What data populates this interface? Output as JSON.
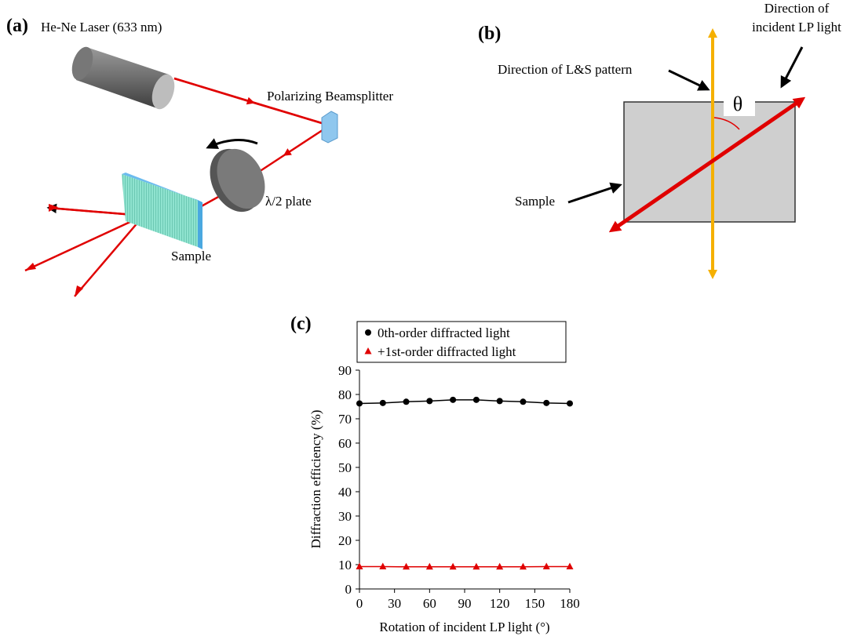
{
  "panel_a": {
    "label": "(a)",
    "laser": "He-Ne Laser (633 nm)",
    "splitter": "Polarizing Beamsplitter",
    "plate": "λ/2 plate",
    "sample": "Sample"
  },
  "panel_b": {
    "label": "(b)",
    "lp_direction": [
      "Direction of",
      "incident LP light"
    ],
    "pattern": "Direction of L&S pattern",
    "angle": "θ",
    "sample": "Sample"
  },
  "chart_data": {
    "type": "line",
    "label": "(c)",
    "x_label": "Rotation of incident LP light (°)",
    "y_label": "Diffraction efficiency (%)",
    "x": [
      0,
      20,
      40,
      60,
      80,
      100,
      120,
      140,
      160,
      180
    ],
    "series": [
      {
        "name": "0th-order diffracted light",
        "color": "#000000",
        "marker": "circle",
        "values": [
          76.3,
          76.5,
          77.0,
          77.3,
          77.8,
          77.8,
          77.3,
          77.0,
          76.5,
          76.3
        ]
      },
      {
        "name": "+1st-order diffracted light",
        "color": "#e00000",
        "marker": "triangle",
        "values": [
          9.2,
          9.2,
          9.1,
          9.1,
          9.1,
          9.1,
          9.1,
          9.1,
          9.2,
          9.2
        ]
      }
    ],
    "xlim": [
      0,
      180
    ],
    "xticks": [
      0,
      30,
      60,
      90,
      120,
      150,
      180
    ],
    "ylim": [
      0,
      90
    ],
    "yticks": [
      0,
      10,
      20,
      30,
      40,
      50,
      60,
      70,
      80,
      90
    ],
    "legend": "top"
  }
}
